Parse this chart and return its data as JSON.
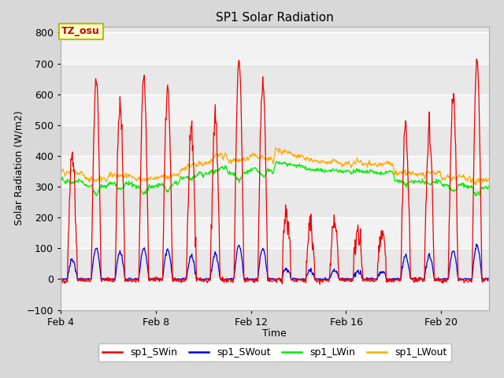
{
  "title": "SP1 Solar Radiation",
  "xlabel": "Time",
  "ylabel": "Solar Radiation (W/m2)",
  "ylim": [
    -100,
    820
  ],
  "yticks": [
    -100,
    0,
    100,
    200,
    300,
    400,
    500,
    600,
    700,
    800
  ],
  "bg_color": "#d8d8d8",
  "plot_bg_color": "#e8e8e8",
  "timezone_label": "TZ_osu",
  "tz_box_facecolor": "#ffffcc",
  "tz_box_edgecolor": "#bbbb00",
  "tz_text_color": "#cc0000",
  "colors": {
    "SWin": "#ee0000",
    "SWout": "#0000dd",
    "LWin": "#00ee00",
    "LWout": "#ffaa00"
  },
  "legend_labels": [
    "sp1_SWin",
    "sp1_SWout",
    "sp1_LWin",
    "sp1_LWout"
  ],
  "xticklabels": [
    "Feb 4",
    "Feb 8",
    "Feb 12",
    "Feb 16",
    "Feb 20"
  ],
  "xlim": [
    4,
    22
  ]
}
